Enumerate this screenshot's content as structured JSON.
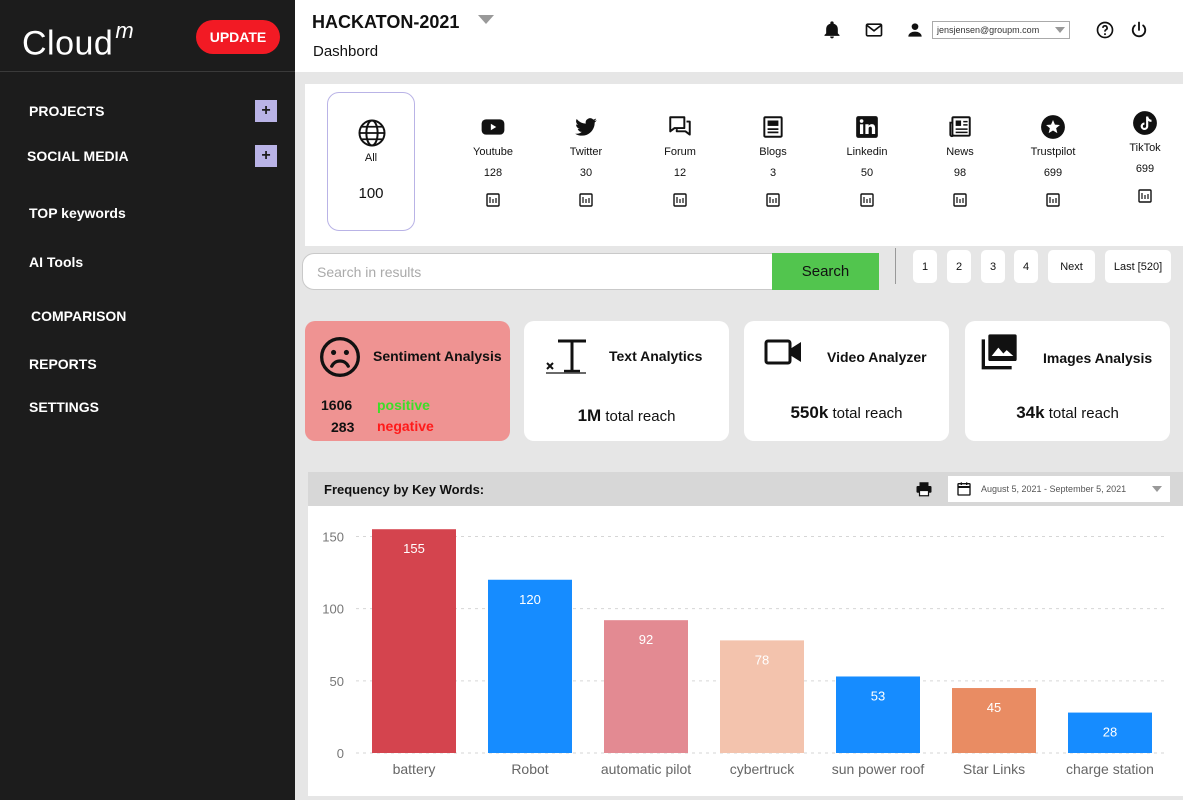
{
  "app": {
    "logo": "Cloud",
    "logo_sup": "m",
    "update_label": "UPDATE"
  },
  "sidebar": {
    "items": [
      {
        "label": "PROJECTS",
        "expandable": true
      },
      {
        "label": "SOCIAL MEDIA",
        "expandable": true
      },
      {
        "label": "TOP keywords"
      },
      {
        "label": "AI Tools"
      },
      {
        "label": "COMPARISON"
      },
      {
        "label": "REPORTS"
      },
      {
        "label": "SETTINGS"
      }
    ],
    "expand_symbol": "+"
  },
  "header": {
    "project": "HACKATON-2021",
    "page": "Dashbord",
    "user_email": "jensjensen@groupm.com",
    "icons": [
      "bell-icon",
      "mail-icon",
      "user-icon",
      "help-icon",
      "power-icon"
    ]
  },
  "sources": {
    "all": {
      "label": "All",
      "count": "100"
    },
    "items": [
      {
        "name": "Youtube",
        "count": "128"
      },
      {
        "name": "Twitter",
        "count": "30"
      },
      {
        "name": "Forum",
        "count": "12"
      },
      {
        "name": "Blogs",
        "count": "3"
      },
      {
        "name": "Linkedin",
        "count": "50"
      },
      {
        "name": "News",
        "count": "98"
      },
      {
        "name": "Trustpilot",
        "count": "699"
      },
      {
        "name": "TikTok",
        "count": "699"
      }
    ]
  },
  "search": {
    "placeholder": "Search in results",
    "button": "Search"
  },
  "pagination": {
    "pages": [
      "1",
      "2",
      "3",
      "4"
    ],
    "next": "Next",
    "last": "Last [520]"
  },
  "cards": {
    "sentiment": {
      "title": "Sentiment Analysis",
      "positive_count": "1606",
      "positive_label": "positive",
      "negative_count": "283",
      "negative_label": "negative"
    },
    "text": {
      "title": "Text Analytics",
      "value": "1M",
      "suffix": "total reach"
    },
    "video": {
      "title": "Video Analyzer",
      "value": "550k",
      "suffix": "total reach"
    },
    "images": {
      "title": "Images Analysis",
      "value": "34k",
      "suffix": "total reach"
    }
  },
  "colors": {
    "positive": "#3dde28",
    "negative": "#ff1a1a",
    "accent": "#f21a24",
    "search": "#52c54e"
  },
  "chart_panel": {
    "title": "Frequency by Key Words:",
    "date_range": "August 5, 2021 - September 5, 2021"
  },
  "chart_data": {
    "type": "bar",
    "title": "Frequency by Key Words:",
    "categories": [
      "battery",
      "Robot",
      "automatic pilot",
      "cybertruck",
      "sun power roof",
      "Star Links",
      "charge station"
    ],
    "values": [
      155,
      120,
      92,
      78,
      53,
      45,
      28
    ],
    "colors": [
      "#d4444e",
      "#168cff",
      "#e38a92",
      "#f3c3ad",
      "#168cff",
      "#e98c63",
      "#168cff"
    ],
    "yticks": [
      0,
      50,
      100,
      150
    ],
    "ylim": [
      0,
      160
    ],
    "xlabel": "",
    "ylabel": "",
    "grid": true
  }
}
